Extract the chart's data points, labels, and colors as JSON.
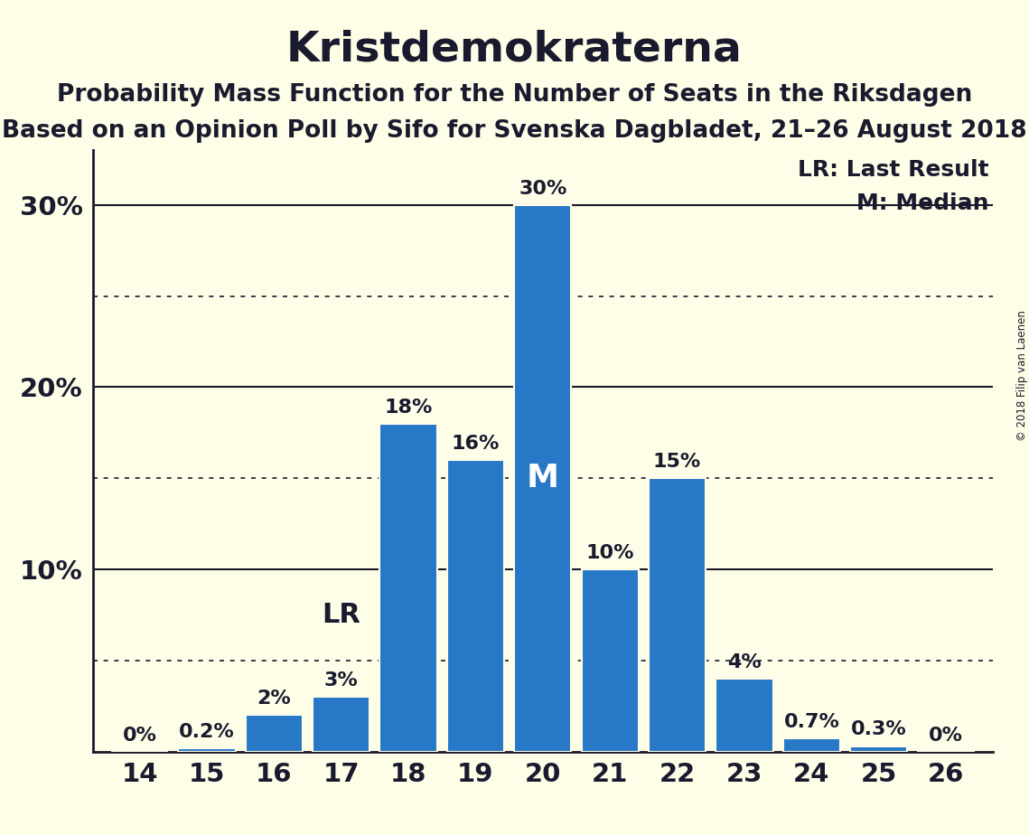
{
  "title": "Kristdemokraterna",
  "subtitle1": "Probability Mass Function for the Number of Seats in the Riksdagen",
  "subtitle2": "Based on an Opinion Poll by Sifo for Svenska Dagbladet, 21–26 August 2018",
  "copyright": "© 2018 Filip van Laenen",
  "seats": [
    14,
    15,
    16,
    17,
    18,
    19,
    20,
    21,
    22,
    23,
    24,
    25,
    26
  ],
  "probabilities": [
    0.0,
    0.2,
    2.0,
    3.0,
    18.0,
    16.0,
    30.0,
    10.0,
    15.0,
    4.0,
    0.7,
    0.3,
    0.0
  ],
  "bar_color": "#2878C8",
  "background_color": "#FEFEE8",
  "text_color": "#1A1A2E",
  "label_values": [
    "0%",
    "0.2%",
    "2%",
    "3%",
    "18%",
    "16%",
    "30%",
    "10%",
    "15%",
    "4%",
    "0.7%",
    "0.3%",
    "0%"
  ],
  "lr_seat": 17,
  "median_seat": 20,
  "lr_label": "LR",
  "median_label": "M",
  "legend_lr": "LR: Last Result",
  "legend_m": "M: Median",
  "ylim_max": 33,
  "solid_gridlines": [
    10,
    20,
    30
  ],
  "dotted_gridlines": [
    5,
    15,
    25
  ],
  "title_fontsize": 34,
  "subtitle_fontsize": 19,
  "label_fontsize": 16,
  "tick_fontsize": 21,
  "legend_fontsize": 18,
  "lr_fontsize": 22
}
